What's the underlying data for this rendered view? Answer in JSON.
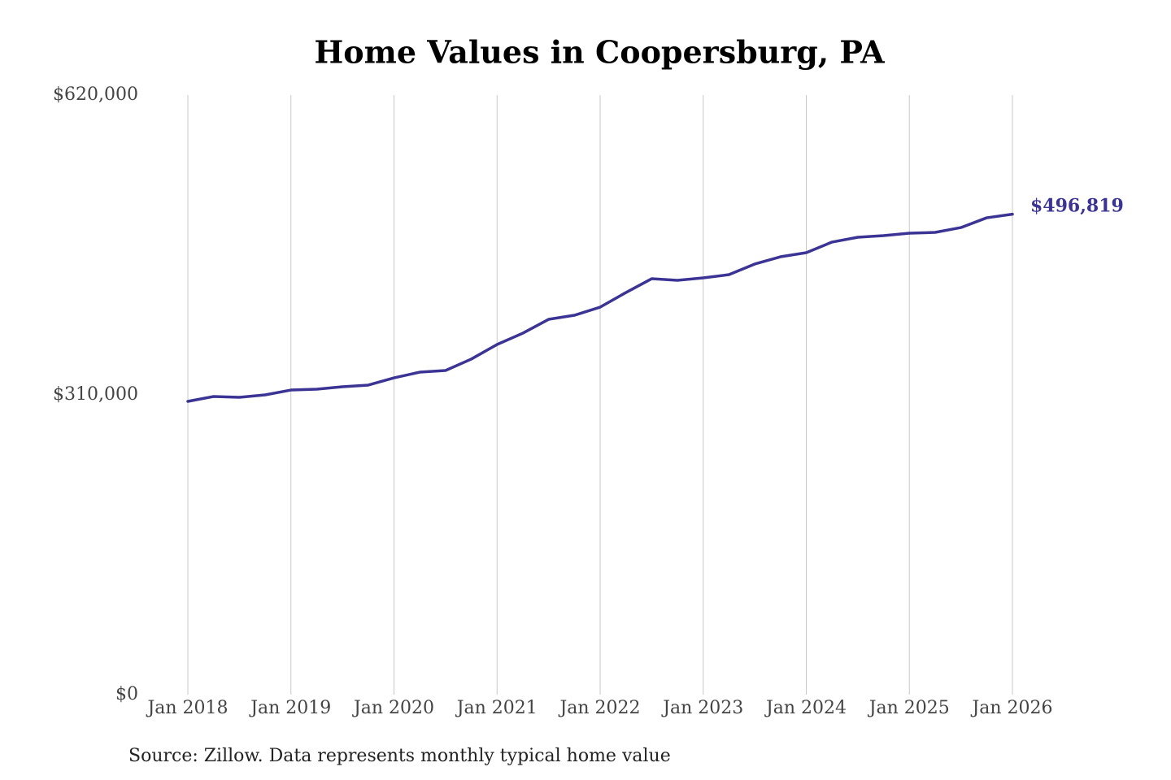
{
  "chart_data": {
    "type": "line",
    "title": "Home Values in Coopersburg, PA",
    "source": "Source: Zillow. Data represents monthly typical home value",
    "x": [
      "2018-01",
      "2018-04",
      "2018-07",
      "2018-10",
      "2019-01",
      "2019-04",
      "2019-07",
      "2019-10",
      "2020-01",
      "2020-04",
      "2020-07",
      "2020-10",
      "2021-01",
      "2021-04",
      "2021-07",
      "2021-10",
      "2022-01",
      "2022-04",
      "2022-07",
      "2022-10",
      "2023-01",
      "2023-04",
      "2023-07",
      "2023-10",
      "2024-01",
      "2024-04",
      "2024-07",
      "2024-10",
      "2025-01",
      "2025-04",
      "2025-07",
      "2025-10",
      "2026-01"
    ],
    "series": [
      {
        "name": "Home value",
        "color": "#3b3494",
        "values": [
          303300,
          308300,
          307500,
          310000,
          315000,
          315900,
          318400,
          320100,
          327600,
          333500,
          335200,
          347000,
          362100,
          373800,
          388100,
          392300,
          400700,
          415800,
          430100,
          428500,
          431000,
          434300,
          445300,
          452800,
          457000,
          468000,
          473000,
          474700,
          477200,
          478000,
          483000,
          493100,
          496819
        ]
      }
    ],
    "end_value_label": "$496,819",
    "xlim": [
      "2018-01",
      "2026-01"
    ],
    "xticks": [
      {
        "value": "2018-01",
        "label": "Jan 2018"
      },
      {
        "value": "2019-01",
        "label": "Jan 2019"
      },
      {
        "value": "2020-01",
        "label": "Jan 2020"
      },
      {
        "value": "2021-01",
        "label": "Jan 2021"
      },
      {
        "value": "2022-01",
        "label": "Jan 2022"
      },
      {
        "value": "2023-01",
        "label": "Jan 2023"
      },
      {
        "value": "2024-01",
        "label": "Jan 2024"
      },
      {
        "value": "2025-01",
        "label": "Jan 2025"
      },
      {
        "value": "2026-01",
        "label": "Jan 2026"
      }
    ],
    "ylim": [
      0,
      620000
    ],
    "yticks": [
      {
        "value": 0,
        "label": "$0"
      },
      {
        "value": 310000,
        "label": "$310,000"
      },
      {
        "value": 620000,
        "label": "$620,000"
      }
    ],
    "grid": "x"
  }
}
